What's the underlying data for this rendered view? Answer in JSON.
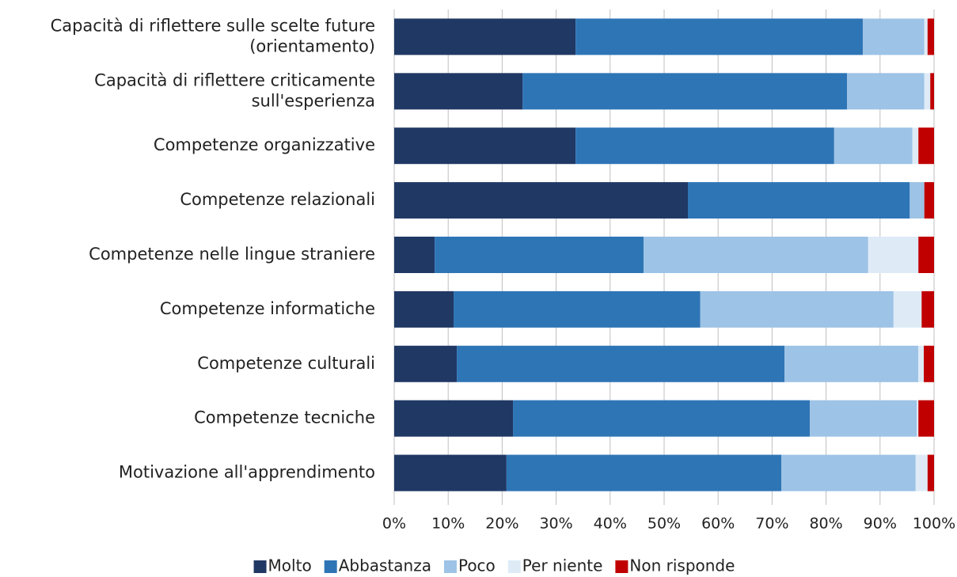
{
  "chart_data": {
    "type": "stacked_barh",
    "categories": [
      "Capacità di riflettere sulle scelte future\n(orientamento)",
      "Capacità di riflettere criticamente\nsull'esperienza",
      "Competenze organizzative",
      "Competenze relazionali",
      "Competenze nelle lingue straniere",
      "Competenze informatiche",
      "Competenze culturali",
      "Competenze tecniche",
      "Motivazione all'apprendimento"
    ],
    "series": [
      {
        "name": "Molto",
        "color": "#203864",
        "values": [
          33.6,
          23.8,
          33.6,
          54.4,
          7.5,
          11.0,
          11.6,
          22.0,
          20.8
        ]
      },
      {
        "name": "Abbastanza",
        "color": "#2e75b6",
        "values": [
          53.2,
          60.1,
          47.9,
          41.1,
          38.7,
          45.7,
          60.7,
          55.0,
          50.9
        ]
      },
      {
        "name": "Poco",
        "color": "#9dc3e6",
        "values": [
          11.4,
          14.3,
          14.5,
          2.7,
          41.6,
          35.8,
          24.8,
          19.8,
          24.9
        ]
      },
      {
        "name": "Per niente",
        "color": "#deebf7",
        "values": [
          0.6,
          1.1,
          1.1,
          0,
          9.3,
          5.2,
          1.0,
          0.3,
          2.2
        ]
      },
      {
        "name": "Non risponde",
        "color": "#c00000",
        "values": [
          1.2,
          0.7,
          2.9,
          1.8,
          2.9,
          2.3,
          1.9,
          2.9,
          1.2
        ]
      }
    ],
    "xlim": [
      0,
      100
    ],
    "xticks": [
      {
        "value": 0,
        "label": "0%"
      },
      {
        "value": 10,
        "label": "10%"
      },
      {
        "value": 20,
        "label": "20%"
      },
      {
        "value": 30,
        "label": "30%"
      },
      {
        "value": 40,
        "label": "40%"
      },
      {
        "value": 50,
        "label": "50%"
      },
      {
        "value": 60,
        "label": "60%"
      },
      {
        "value": 70,
        "label": "70%"
      },
      {
        "value": 80,
        "label": "80%"
      },
      {
        "value": 90,
        "label": "90%"
      },
      {
        "value": 100,
        "label": "100%"
      }
    ],
    "grid": true,
    "legend": "bottom"
  }
}
